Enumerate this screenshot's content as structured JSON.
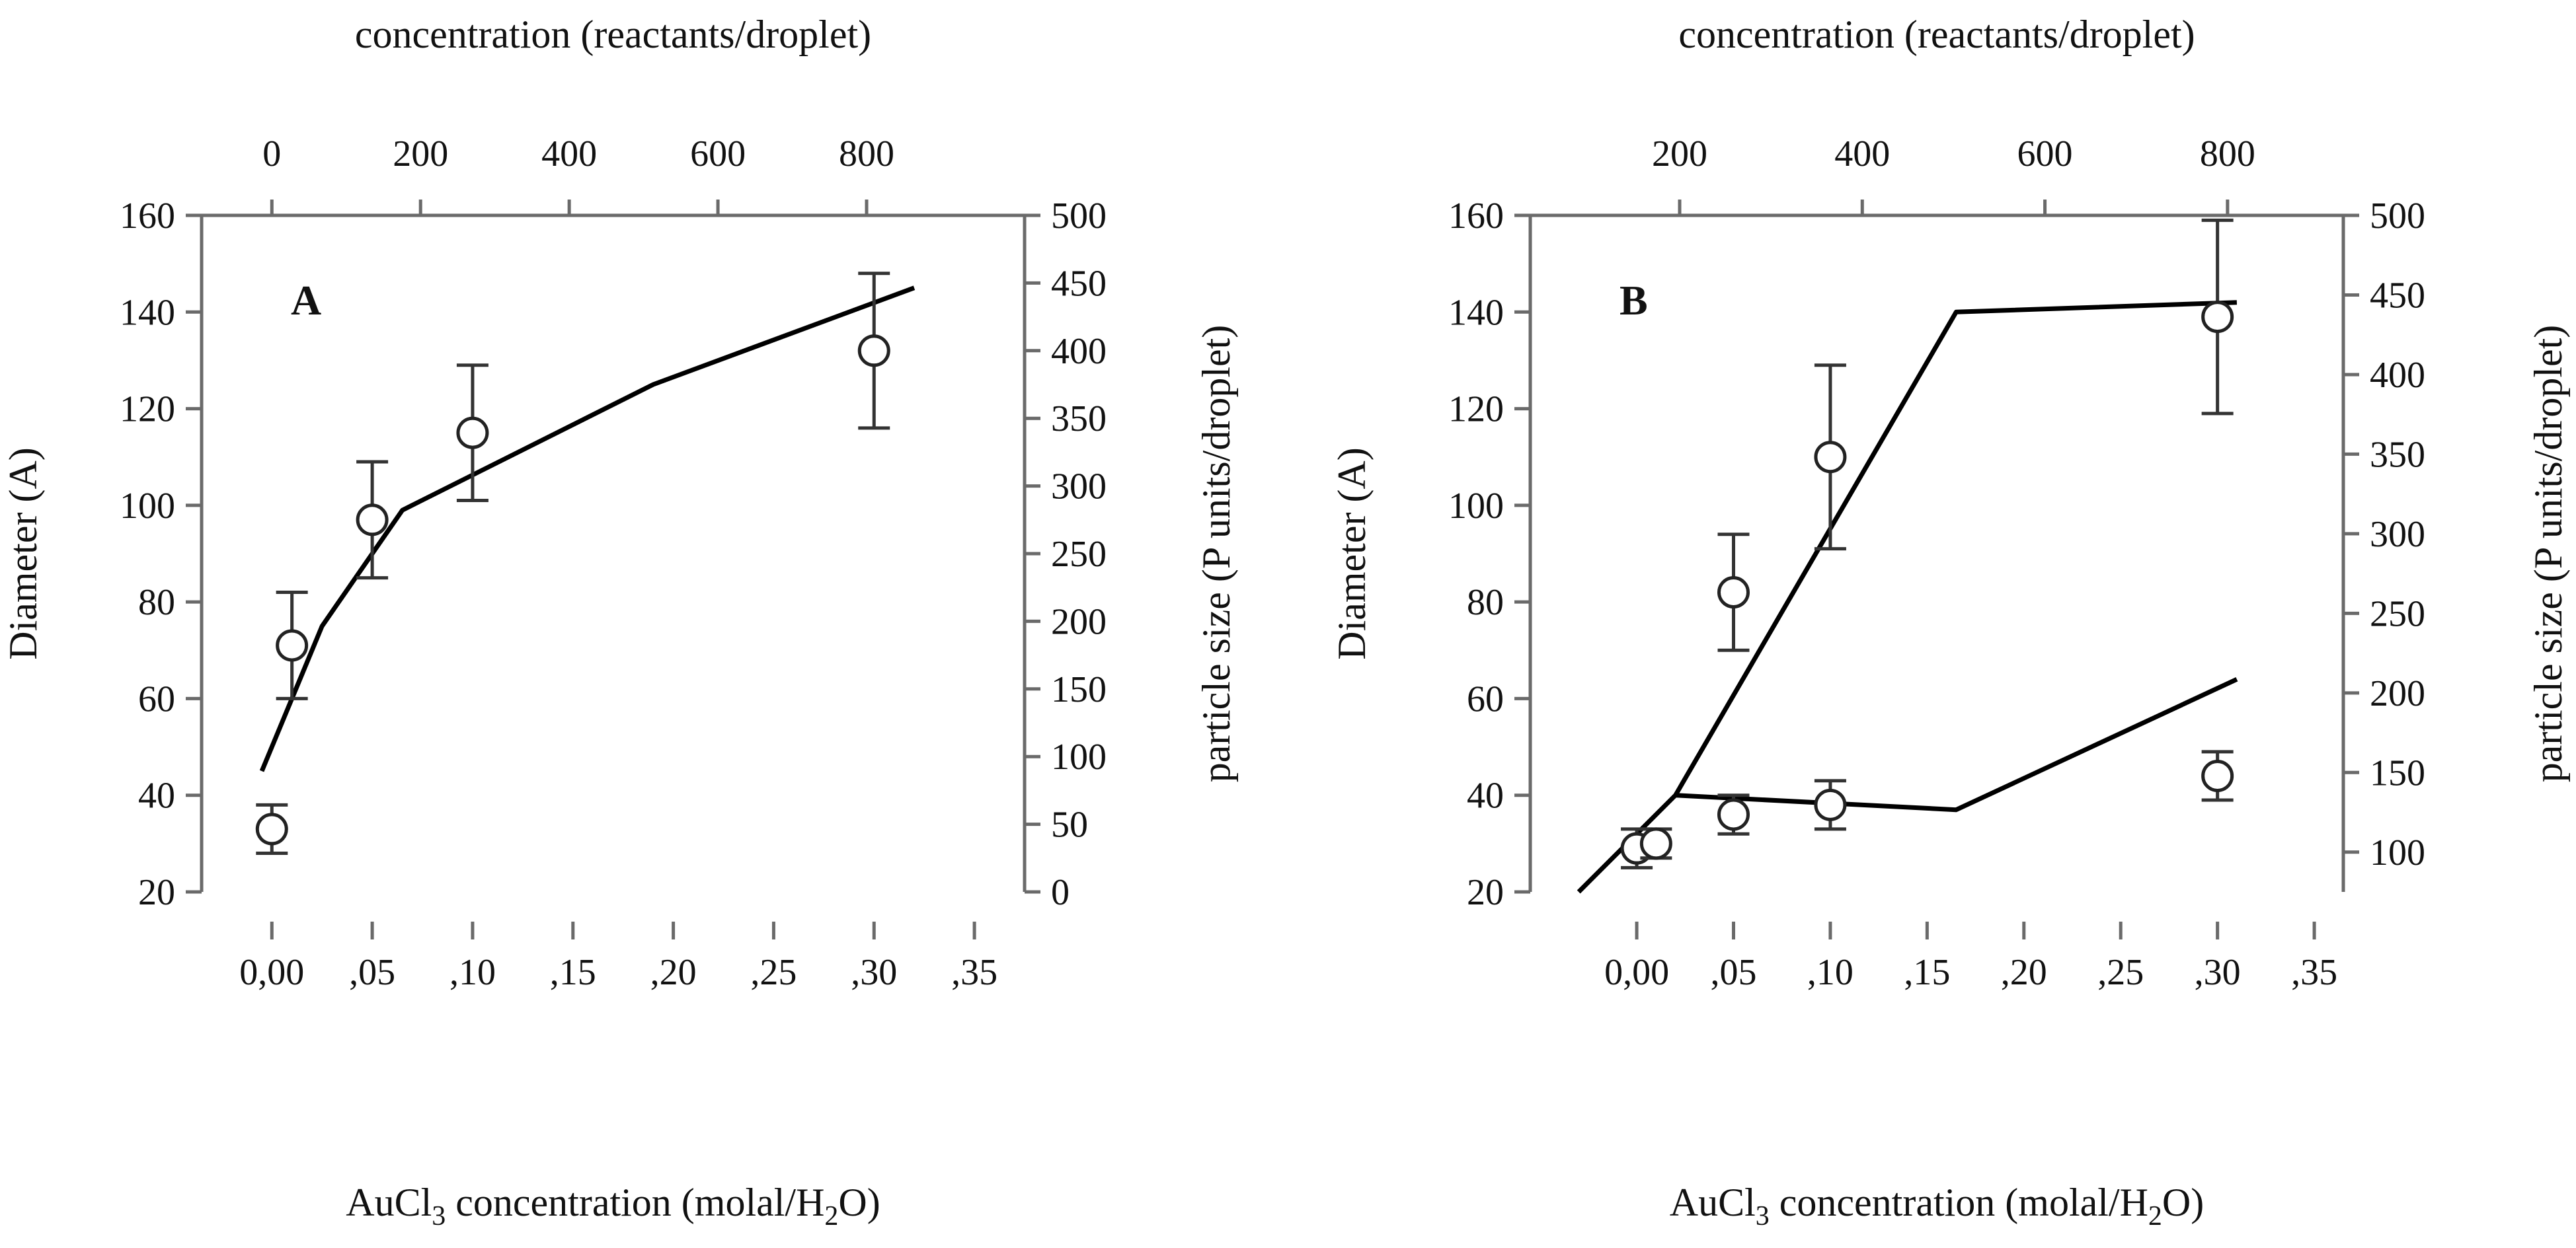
{
  "chart_data": [
    {
      "type": "scatter",
      "panel_label": "A",
      "xlabel_bottom": "AuCl",
      "xlabel_bottom_sub": "3",
      "xlabel_bottom_mid": " concentration (molal/H",
      "xlabel_bottom_sub2": "2",
      "xlabel_bottom_end": "O)",
      "xlabel_top": "concentration (reactants/droplet)",
      "ylabel_left": "Diameter (A)",
      "ylabel_right": "particle size (P units/droplet)",
      "xlim": [
        -0.035,
        0.375
      ],
      "ylim": [
        20,
        160
      ],
      "x_ticks": [
        0.0,
        0.05,
        0.1,
        0.15,
        0.2,
        0.25,
        0.3,
        0.35
      ],
      "x_tick_labels": [
        "0,00",
        ",05",
        ",10",
        ",15",
        ",20",
        ",25",
        ",30",
        ",35"
      ],
      "y_ticks": [
        20,
        40,
        60,
        80,
        100,
        120,
        140,
        160
      ],
      "y_tick_labels": [
        "20",
        "40",
        "60",
        "80",
        "100",
        "120",
        "140",
        "160"
      ],
      "top_ticks": [
        0,
        200,
        400,
        600,
        800
      ],
      "top_tick_labels": [
        "0",
        "200",
        "400",
        "600",
        "800"
      ],
      "top_scale": {
        "top_value_at_x0": 0,
        "top_per_x": 2700
      },
      "right_ticks": [
        0,
        50,
        100,
        150,
        200,
        250,
        300,
        350,
        400,
        450,
        500
      ],
      "right_tick_labels": [
        "0",
        "50",
        "100",
        "150",
        "200",
        "250",
        "300",
        "350",
        "400",
        "450",
        "500"
      ],
      "right_scale": {
        "right_at_ybottom": 0,
        "right_at_ytop": 500
      },
      "points": [
        {
          "x": 0.0,
          "y": 33,
          "err_low": 28,
          "err_high": 38
        },
        {
          "x": 0.01,
          "y": 71,
          "err_low": 60,
          "err_high": 82
        },
        {
          "x": 0.05,
          "y": 97,
          "err_low": 85,
          "err_high": 109
        },
        {
          "x": 0.1,
          "y": 115,
          "err_low": 101,
          "err_high": 129
        },
        {
          "x": 0.3,
          "y": 132,
          "err_low": 116,
          "err_high": 148
        }
      ],
      "lines": [
        [
          {
            "x": -0.005,
            "y": 45
          },
          {
            "x": 0.025,
            "y": 75
          },
          {
            "x": 0.065,
            "y": 99
          },
          {
            "x": 0.19,
            "y": 125
          },
          {
            "x": 0.32,
            "y": 145
          }
        ]
      ]
    },
    {
      "type": "scatter",
      "panel_label": "B",
      "xlabel_bottom": "AuCl",
      "xlabel_bottom_sub": "3",
      "xlabel_bottom_mid": " concentration (molal/H",
      "xlabel_bottom_sub2": "2",
      "xlabel_bottom_end": "O)",
      "xlabel_top": "concentration (reactants/droplet)",
      "ylabel_left": "Diameter (A)",
      "ylabel_right": "particle size (P units/droplet)",
      "xlim": [
        -0.055,
        0.365
      ],
      "ylim": [
        20,
        160
      ],
      "x_ticks": [
        0.0,
        0.05,
        0.1,
        0.15,
        0.2,
        0.25,
        0.3,
        0.35
      ],
      "x_tick_labels": [
        "0,00",
        ",05",
        ",10",
        ",15",
        ",20",
        ",25",
        ",30",
        ",35"
      ],
      "y_ticks": [
        20,
        40,
        60,
        80,
        100,
        120,
        140,
        160
      ],
      "y_tick_labels": [
        "20",
        "40",
        "60",
        "80",
        "100",
        "120",
        "140",
        "160"
      ],
      "top_ticks": [
        200,
        400,
        600,
        800
      ],
      "top_tick_labels": [
        "200",
        "400",
        "600",
        "800"
      ],
      "top_scale": {
        "top_value_at_x0": 153,
        "top_per_x": 2120
      },
      "right_ticks": [
        100,
        150,
        200,
        250,
        300,
        350,
        400,
        450,
        500
      ],
      "right_tick_labels": [
        "100",
        "150",
        "200",
        "250",
        "300",
        "350",
        "400",
        "450",
        "500"
      ],
      "right_scale": {
        "right_at_ybottom": 75,
        "right_at_ytop": 500
      },
      "points": [
        {
          "x": 0.0,
          "y": 29,
          "err_low": 25,
          "err_high": 33
        },
        {
          "x": 0.01,
          "y": 30,
          "err_low": 27,
          "err_high": 33
        },
        {
          "x": 0.05,
          "y": 82,
          "err_low": 70,
          "err_high": 94
        },
        {
          "x": 0.05,
          "y": 36,
          "err_low": 32,
          "err_high": 40
        },
        {
          "x": 0.1,
          "y": 110,
          "err_low": 91,
          "err_high": 129
        },
        {
          "x": 0.1,
          "y": 38,
          "err_low": 33,
          "err_high": 43
        },
        {
          "x": 0.3,
          "y": 139,
          "err_low": 119,
          "err_high": 159
        },
        {
          "x": 0.3,
          "y": 44,
          "err_low": 39,
          "err_high": 49
        }
      ],
      "lines": [
        [
          {
            "x": -0.03,
            "y": 20
          },
          {
            "x": 0.02,
            "y": 40
          },
          {
            "x": 0.165,
            "y": 140
          },
          {
            "x": 0.31,
            "y": 142
          }
        ],
        [
          {
            "x": 0.02,
            "y": 40
          },
          {
            "x": 0.165,
            "y": 37
          },
          {
            "x": 0.31,
            "y": 64
          }
        ]
      ]
    }
  ]
}
